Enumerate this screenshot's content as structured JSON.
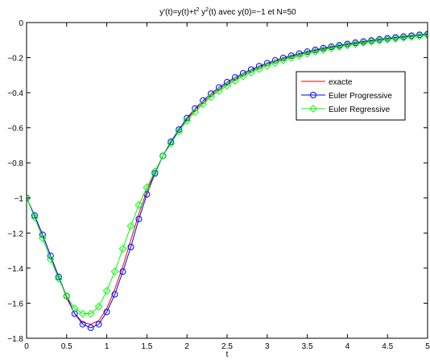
{
  "chart_data": {
    "type": "line",
    "title": "y'(t)=y(t)+t² y²(t) avec y(0)=−1 et N=50",
    "title_parts": {
      "a": "y'(t)=y(t)+t",
      "sup1": "2",
      "b": " y",
      "sup2": "2",
      "c": "(t) avec y(0)=−1 et N=50"
    },
    "xlabel": "t",
    "ylabel": "",
    "xlim": [
      0,
      5
    ],
    "ylim": [
      -1.8,
      0
    ],
    "xticks": [
      0,
      0.5,
      1,
      1.5,
      2,
      2.5,
      3,
      3.5,
      4,
      4.5,
      5
    ],
    "xtick_labels": [
      "0",
      "0.5",
      "1",
      "1.5",
      "2",
      "2.5",
      "3",
      "3.5",
      "4",
      "4.5",
      "5"
    ],
    "yticks": [
      0,
      -0.2,
      -0.4,
      -0.6,
      -0.8,
      -1,
      -1.2,
      -1.4,
      -1.6,
      -1.8
    ],
    "ytick_labels": [
      "0",
      "−0.2",
      "−0.4",
      "−0.6",
      "−0.8",
      "−1",
      "−1.2",
      "−1.4",
      "−1.6",
      "−1.8"
    ],
    "grid": false,
    "legend_position": "top-right",
    "x": [
      0,
      0.1,
      0.2,
      0.3,
      0.4,
      0.5,
      0.6,
      0.7,
      0.8,
      0.9,
      1.0,
      1.1,
      1.2,
      1.3,
      1.4,
      1.5,
      1.6,
      1.7,
      1.8,
      1.9,
      2.0,
      2.1,
      2.2,
      2.3,
      2.4,
      2.5,
      2.6,
      2.7,
      2.8,
      2.9,
      3.0,
      3.1,
      3.2,
      3.3,
      3.4,
      3.5,
      3.6,
      3.7,
      3.8,
      3.9,
      4.0,
      4.1,
      4.2,
      4.3,
      4.4,
      4.5,
      4.6,
      4.7,
      4.8,
      4.9,
      5.0
    ],
    "series": [
      {
        "name": "exacte",
        "color": "#ff0000",
        "marker": "none",
        "values": [
          -1.0,
          -1.1,
          -1.21,
          -1.33,
          -1.45,
          -1.57,
          -1.66,
          -1.71,
          -1.72,
          -1.7,
          -1.63,
          -1.52,
          -1.39,
          -1.24,
          -1.09,
          -0.96,
          -0.85,
          -0.76,
          -0.68,
          -0.61,
          -0.55,
          -0.5,
          -0.455,
          -0.415,
          -0.38,
          -0.35,
          -0.322,
          -0.298,
          -0.276,
          -0.256,
          -0.238,
          -0.222,
          -0.208,
          -0.194,
          -0.182,
          -0.171,
          -0.16,
          -0.151,
          -0.142,
          -0.134,
          -0.126,
          -0.119,
          -0.112,
          -0.106,
          -0.1,
          -0.094,
          -0.089,
          -0.084,
          -0.079,
          -0.075,
          -0.07
        ]
      },
      {
        "name": "Euler Progressive",
        "color": "#0000ff",
        "marker": "circle",
        "values": [
          -1.0,
          -1.1,
          -1.21,
          -1.33,
          -1.45,
          -1.56,
          -1.66,
          -1.72,
          -1.74,
          -1.72,
          -1.65,
          -1.55,
          -1.42,
          -1.28,
          -1.12,
          -0.98,
          -0.86,
          -0.76,
          -0.68,
          -0.61,
          -0.545,
          -0.49,
          -0.445,
          -0.405,
          -0.37,
          -0.34,
          -0.313,
          -0.289,
          -0.268,
          -0.249,
          -0.232,
          -0.216,
          -0.202,
          -0.189,
          -0.177,
          -0.166,
          -0.156,
          -0.146,
          -0.138,
          -0.13,
          -0.122,
          -0.115,
          -0.108,
          -0.102,
          -0.096,
          -0.09,
          -0.085,
          -0.08,
          -0.075,
          -0.07,
          -0.066
        ]
      },
      {
        "name": "Euler Regressive",
        "color": "#00ff00",
        "marker": "diamond",
        "values": [
          -1.0,
          -1.11,
          -1.23,
          -1.35,
          -1.46,
          -1.56,
          -1.63,
          -1.66,
          -1.66,
          -1.62,
          -1.53,
          -1.42,
          -1.29,
          -1.16,
          -1.04,
          -0.94,
          -0.85,
          -0.76,
          -0.69,
          -0.62,
          -0.56,
          -0.51,
          -0.465,
          -0.425,
          -0.39,
          -0.36,
          -0.332,
          -0.307,
          -0.285,
          -0.265,
          -0.247,
          -0.23,
          -0.215,
          -0.201,
          -0.189,
          -0.177,
          -0.166,
          -0.156,
          -0.147,
          -0.138,
          -0.13,
          -0.123,
          -0.116,
          -0.109,
          -0.103,
          -0.097,
          -0.092,
          -0.087,
          -0.082,
          -0.077,
          -0.072
        ]
      }
    ]
  }
}
